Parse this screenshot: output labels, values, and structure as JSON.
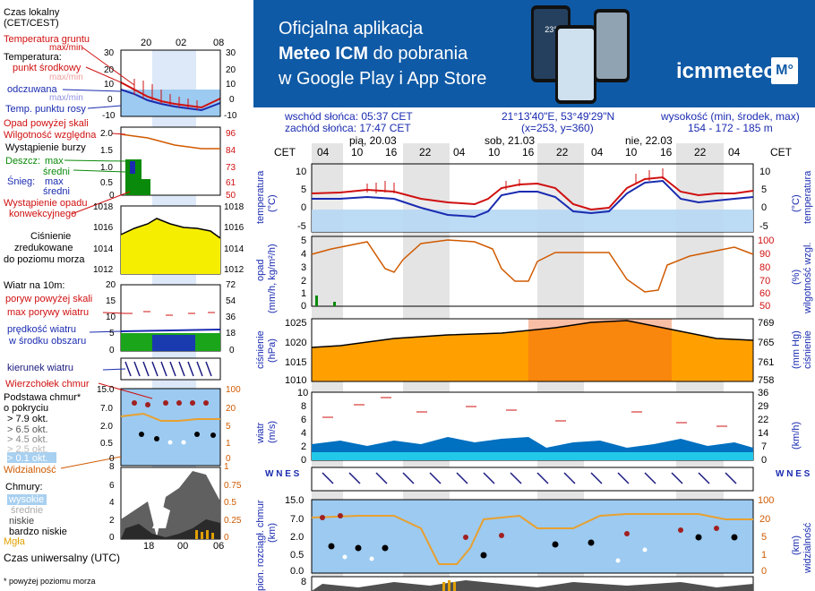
{
  "banner": {
    "line1": "Oficjalna aplikacja",
    "line2_bold": "Meteo ICM",
    "line2_rest": " do pobrania",
    "line3": "w Google Play i App Store",
    "logo_text": "icmmeteo",
    "logo_badge": "M°",
    "phone_temp": "23°"
  },
  "legend": {
    "czas_lokalny": "Czas lokalny",
    "czas_lokalny_tz": "(CET/CEST)",
    "temp_gruntu": "Temperatura gruntu",
    "max_min": "max/min",
    "temperatura": "Temperatura:",
    "punkt_srodkowy": "punkt środkowy",
    "max_min2": "max/min",
    "odczuwana": "odczuwana",
    "max_min3": "max/min",
    "temp_punktu_rosy": "Temp. punktu rosy",
    "opad_powyzej": "Opad powyżej skali",
    "wilgotnosc": "Wilgotność względna",
    "wystapienie_burzy": "Wystąpienie burzy",
    "deszcz": "Deszcz:",
    "max": "max",
    "sredni": "średni",
    "snieg": "Śnieg:",
    "max2": "max",
    "sredni2": "średni",
    "wystapienie_opadu": "Wystąpienie opadu",
    "konwekcyjnego": "konwekcyjnego",
    "cisnienie1": "Ciśnienie",
    "cisnienie2": "zredukowane",
    "cisnienie3": "do poziomu morza",
    "wiatr10m": "Wiatr na 10m:",
    "poryw": "poryw powyżej skali",
    "max_porywy": "max porywy wiatru",
    "predkosc1": "prędkość wiatru",
    "predkosc2": "w środku obszaru",
    "kierunek": "kierunek wiatru",
    "wierzcholek": "Wierzchołek chmur",
    "podstawa1": "Podstawa chmur*",
    "podstawa2": "o pokryciu",
    "okt79": "> 7.9 okt.",
    "okt65": "> 6.5 okt.",
    "okt45": "> 4.5 okt.",
    "okt25": "> 2.5 okt.",
    "okt01": "> 0.1 okt.",
    "widzialnosc": "Widzialność",
    "chmury": "Chmury:",
    "wysokie": "wysokie",
    "srednie": "średnie",
    "niskie": "niskie",
    "bardzo_niskie": "bardzo niskie",
    "mgla": "Mgła",
    "czas_uniwersalny": "Czas uniwersalny (UTC)",
    "footnote": "* powyżej poziomu morza"
  },
  "legend_axes": {
    "top_times": [
      "20",
      "02",
      "08"
    ],
    "bottom_times": [
      "18",
      "00",
      "06"
    ],
    "temp_left": [
      "30",
      "20",
      "10",
      "0",
      "-10"
    ],
    "temp_right": [
      "30",
      "20",
      "10",
      "0",
      "-10"
    ],
    "prec_left": [
      "2.0",
      "1.5",
      "1.0",
      "0.5",
      "0"
    ],
    "prec_right": [
      "96",
      "84",
      "73",
      "61",
      "50"
    ],
    "press_left": [
      "1018",
      "1016",
      "1014",
      "1012"
    ],
    "press_right": [
      "1018",
      "1016",
      "1014",
      "1012"
    ],
    "wind_left": [
      "20",
      "15",
      "10",
      "5",
      "0"
    ],
    "wind_right": [
      "72",
      "54",
      "36",
      "18",
      "0"
    ],
    "cloud_left": [
      "15.0",
      "7.0",
      "2.0",
      "0.5",
      "0"
    ],
    "cloud_right": [
      "100",
      "20",
      "5",
      "1",
      "0"
    ],
    "cov_left": [
      "8",
      "6",
      "4",
      "2",
      "0"
    ],
    "cov_right": [
      "1",
      "0.75",
      "0.5",
      "0.25",
      "0"
    ]
  },
  "header": {
    "sunrise": "wschód słońca: 05:37 CET",
    "sunset": "zachód słońca: 17:47 CET",
    "coords": "21°13'40\"E, 53°49'29\"N",
    "grid": "(x=253,  y=360)",
    "height_label": "wysokość (min, środek, max)",
    "height_values": "154 - 172 - 185 m"
  },
  "main": {
    "cet_label": "CET",
    "days": [
      "pią, 20.03",
      "sob, 21.03",
      "nie, 22.03"
    ],
    "hours": [
      "04",
      "10",
      "16",
      "22",
      "04",
      "10",
      "16",
      "22",
      "04",
      "10",
      "16",
      "22",
      "04"
    ],
    "temp_label": "temperatura",
    "temp_unit": "(°C)",
    "temp_ticks": [
      "10",
      "5",
      "0",
      "-5"
    ],
    "opad_label": "opad",
    "opad_unit": "(mm/h, kg/m²/h)",
    "opad_ticks": [
      "5",
      "4",
      "3",
      "2",
      "1",
      "0"
    ],
    "wilg_label": "wilgotność wzgl.",
    "wilg_unit": "(%)",
    "wilg_ticks": [
      "100",
      "90",
      "80",
      "70",
      "60",
      "50"
    ],
    "press_label": "ciśnienie",
    "press_unit": "(hPa)",
    "press_ticks": [
      "1025",
      "1020",
      "1015",
      "1010"
    ],
    "press_label_r": "ciśnienie",
    "press_unit_r": "(mm Hg)",
    "press_ticks_r": [
      "769",
      "765",
      "761",
      "758"
    ],
    "wind_label": "wiatr",
    "wind_unit": "(m/s)",
    "wind_ticks": [
      "10",
      "8",
      "6",
      "4",
      "2",
      "0"
    ],
    "wind_unit_r": "(km/h)",
    "wind_ticks_r": [
      "36",
      "29",
      "22",
      "14",
      "7",
      "0"
    ],
    "cloud_label": "pion. rozciągł. chmur",
    "cloud_unit": "(km)",
    "cloud_ticks": [
      "15.0",
      "7.0",
      "2.0",
      "0.5",
      "0.0"
    ],
    "vis_label": "widzialność",
    "vis_unit": "(km)",
    "vis_ticks": [
      "100",
      "20",
      "5",
      "1",
      "0"
    ],
    "bottom_tick": "8",
    "compass": "W N E S"
  },
  "colors": {
    "banner": "#0f5aa6",
    "temp_red": "#d01010",
    "temp_blue": "#1a2bb0",
    "pressure": "#f08a00",
    "wind_fill": "#0070c0"
  }
}
